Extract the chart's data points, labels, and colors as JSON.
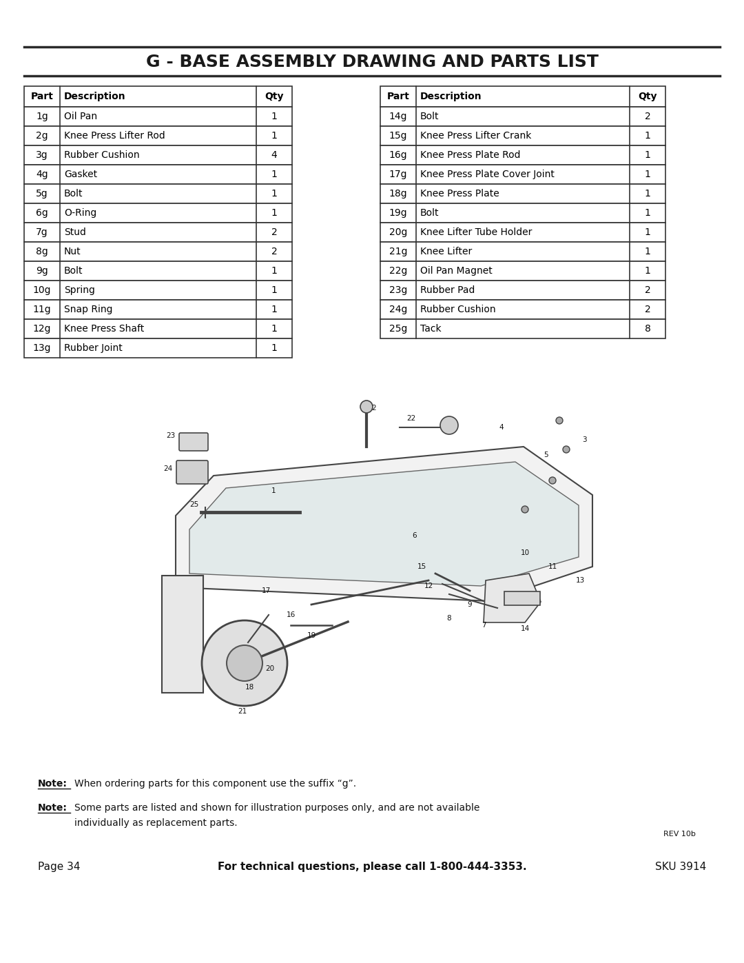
{
  "title": "G - BASE ASSEMBLY DRAWING AND PARTS LIST",
  "page_bg": "#ffffff",
  "title_color": "#1a1a1a",
  "table_left": [
    [
      "Part",
      "Description",
      "Qty"
    ],
    [
      "1g",
      "Oil Pan",
      "1"
    ],
    [
      "2g",
      "Knee Press Lifter Rod",
      "1"
    ],
    [
      "3g",
      "Rubber Cushion",
      "4"
    ],
    [
      "4g",
      "Gasket",
      "1"
    ],
    [
      "5g",
      "Bolt",
      "1"
    ],
    [
      "6g",
      "O-Ring",
      "1"
    ],
    [
      "7g",
      "Stud",
      "2"
    ],
    [
      "8g",
      "Nut",
      "2"
    ],
    [
      "9g",
      "Bolt",
      "1"
    ],
    [
      "10g",
      "Spring",
      "1"
    ],
    [
      "11g",
      "Snap Ring",
      "1"
    ],
    [
      "12g",
      "Knee Press Shaft",
      "1"
    ],
    [
      "13g",
      "Rubber Joint",
      "1"
    ]
  ],
  "table_right": [
    [
      "Part",
      "Description",
      "Qty"
    ],
    [
      "14g",
      "Bolt",
      "2"
    ],
    [
      "15g",
      "Knee Press Lifter Crank",
      "1"
    ],
    [
      "16g",
      "Knee Press Plate Rod",
      "1"
    ],
    [
      "17g",
      "Knee Press Plate Cover Joint",
      "1"
    ],
    [
      "18g",
      "Knee Press Plate",
      "1"
    ],
    [
      "19g",
      "Bolt",
      "1"
    ],
    [
      "20g",
      "Knee Lifter Tube Holder",
      "1"
    ],
    [
      "21g",
      "Knee Lifter",
      "1"
    ],
    [
      "22g",
      "Oil Pan Magnet",
      "1"
    ],
    [
      "23g",
      "Rubber Pad",
      "2"
    ],
    [
      "24g",
      "Rubber Cushion",
      "2"
    ],
    [
      "25g",
      "Tack",
      "8"
    ]
  ],
  "note1": "When ordering parts for this component use the suffix “g”.",
  "note2_line1": "Some parts are listed and shown for illustration purposes only, and are not available",
  "note2_line2": "individually as replacement parts.",
  "rev": "REV 10b",
  "page_label": "Page 34",
  "footer_center": "For technical questions, please call 1-800-444-3353.",
  "sku": "SKU 3914"
}
